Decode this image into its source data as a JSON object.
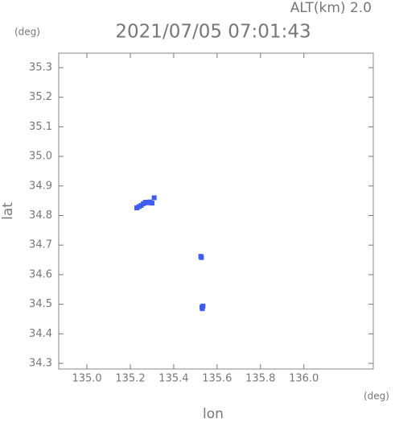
{
  "chart_data": {
    "type": "scatter",
    "title": "2021/07/05 07:01:43",
    "subtitle": "ALT(km) 2.0",
    "x_label": "lon",
    "y_label": "lat",
    "x_unit": "(deg)",
    "y_unit": "(deg)",
    "xlim": [
      134.87,
      136.32
    ],
    "ylim": [
      34.281,
      35.349
    ],
    "xticks": [
      {
        "value": 135.0,
        "label": "135.0"
      },
      135.2,
      135.4,
      135.6,
      135.8,
      {
        "value": 136.0,
        "label": "136.0"
      }
    ],
    "yticks": [
      34.3,
      34.4,
      34.5,
      34.6,
      34.7,
      34.8,
      34.9,
      {
        "value": 35.0,
        "label": "35.0"
      },
      35.1,
      35.2,
      35.3
    ],
    "series": [
      {
        "color": "#3f5cf0",
        "x": [
          135.23,
          135.24,
          135.25,
          135.26,
          135.27,
          135.28,
          135.29,
          135.3,
          135.31,
          135.525,
          135.528,
          135.53,
          135.535,
          135.532
        ],
        "y": [
          34.826,
          34.83,
          34.834,
          34.84,
          34.845,
          34.843,
          34.846,
          34.842,
          34.86,
          34.662,
          34.658,
          34.49,
          34.494,
          34.485
        ]
      }
    ]
  }
}
